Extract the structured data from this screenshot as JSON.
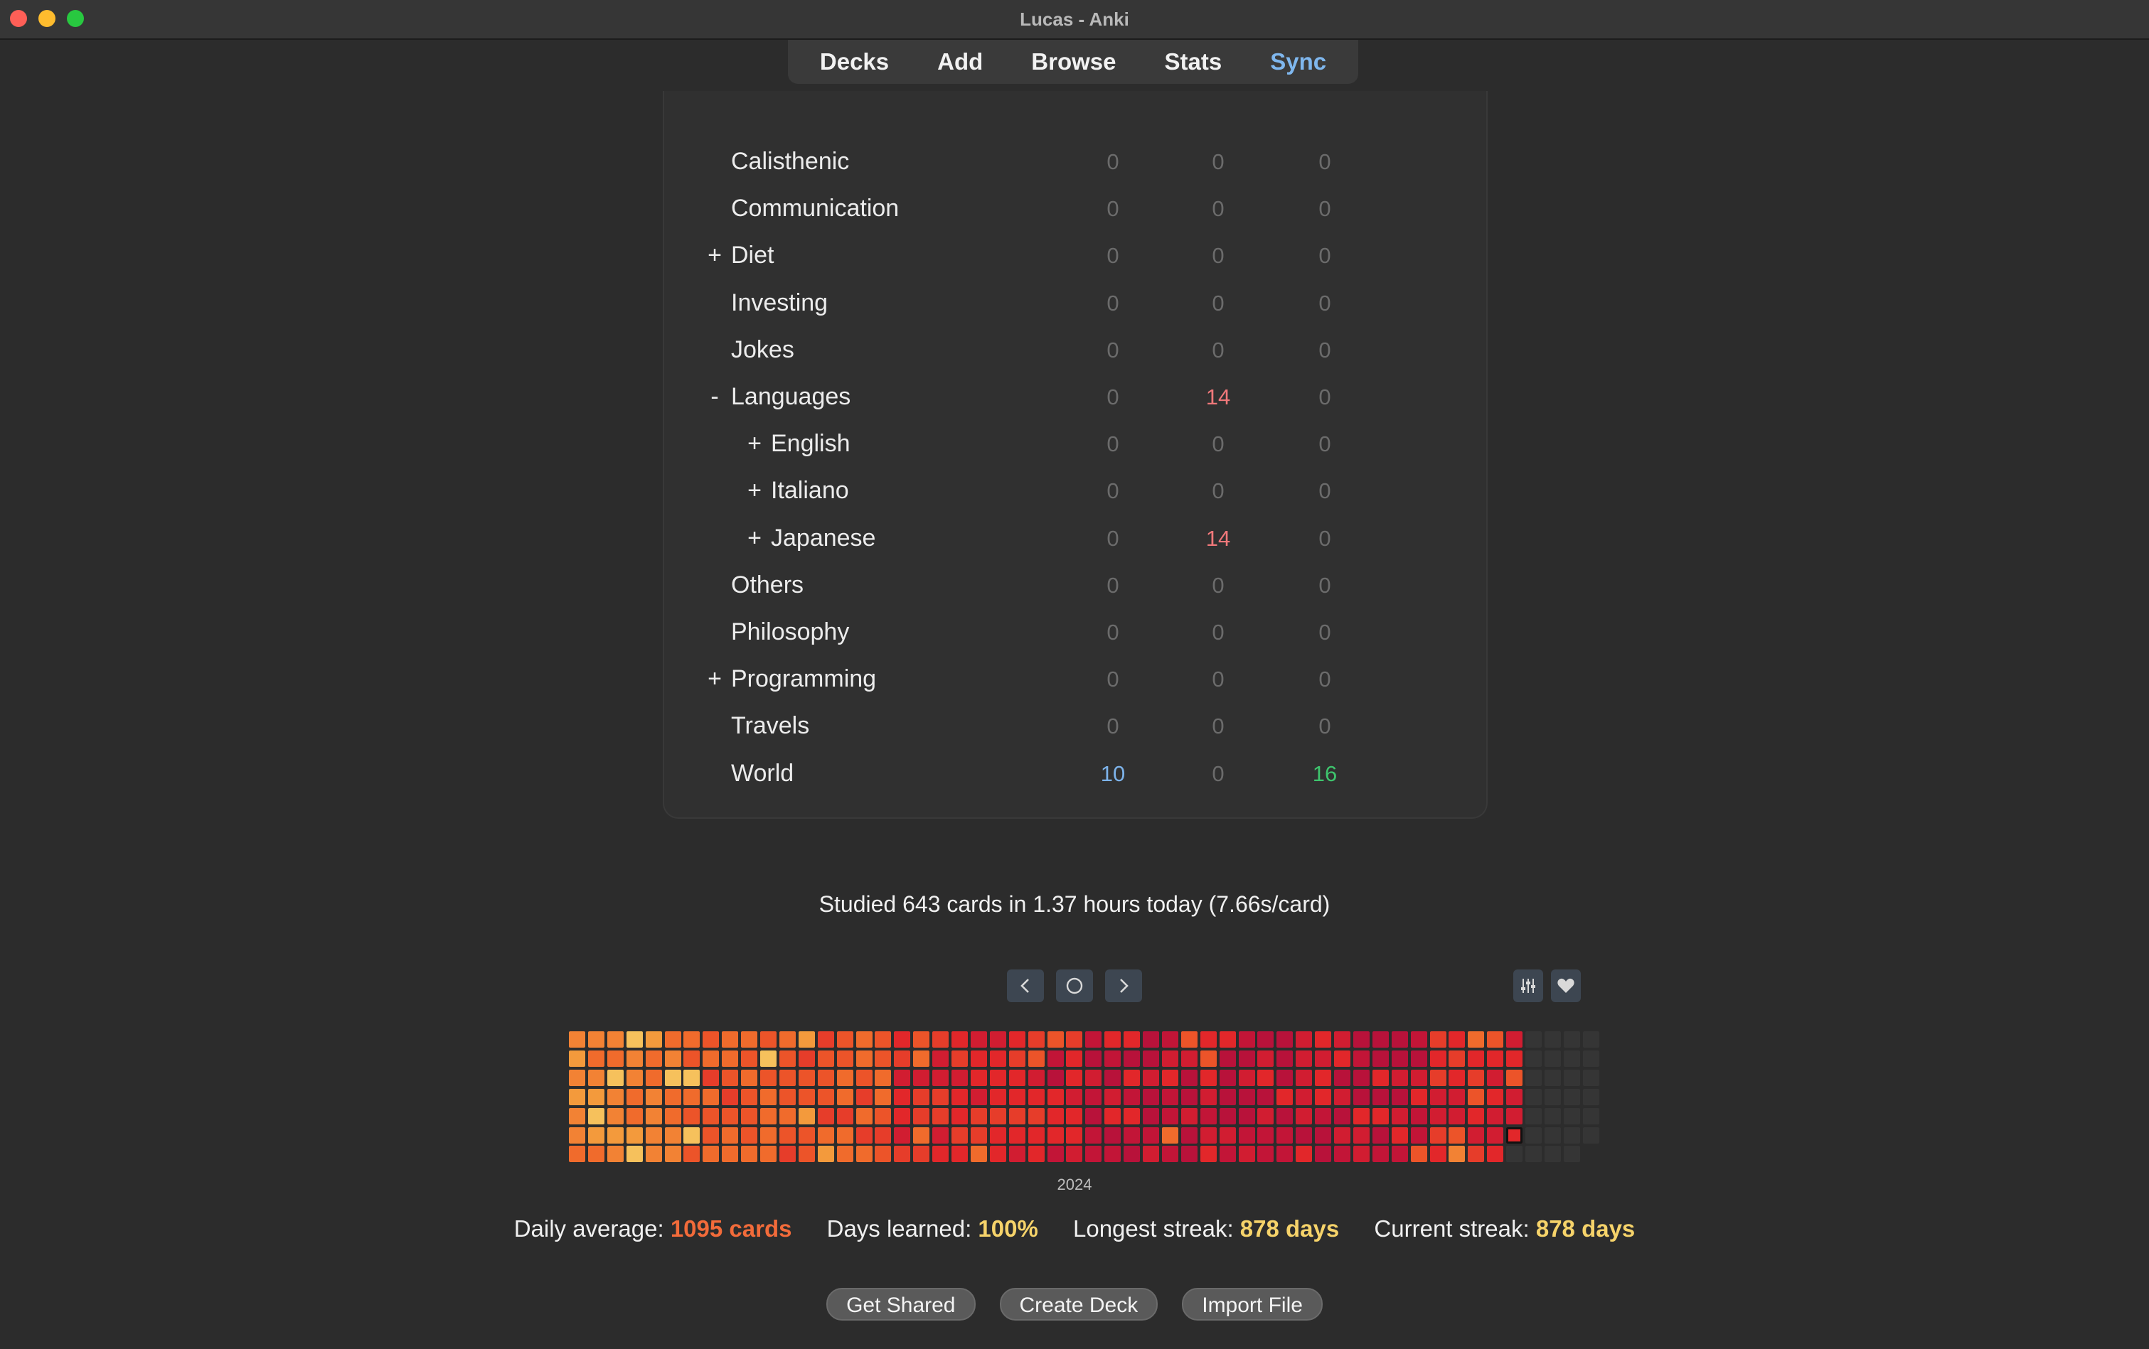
{
  "window": {
    "title": "Lucas - Anki"
  },
  "nav": {
    "decks": "Decks",
    "add": "Add",
    "browse": "Browse",
    "stats": "Stats",
    "sync": "Sync"
  },
  "decks": [
    {
      "toggle": "",
      "name": "Calisthenic",
      "new": "0",
      "learn": "0",
      "review": "0"
    },
    {
      "toggle": "",
      "name": "Communication",
      "new": "0",
      "learn": "0",
      "review": "0"
    },
    {
      "toggle": "+",
      "name": "Diet",
      "new": "0",
      "learn": "0",
      "review": "0"
    },
    {
      "toggle": "",
      "name": "Investing",
      "new": "0",
      "learn": "0",
      "review": "0"
    },
    {
      "toggle": "",
      "name": "Jokes",
      "new": "0",
      "learn": "0",
      "review": "0"
    },
    {
      "toggle": "-",
      "name": "Languages",
      "new": "0",
      "learn": "14",
      "review": "0"
    },
    {
      "toggle": "+",
      "name": "English",
      "new": "0",
      "learn": "0",
      "review": "0"
    },
    {
      "toggle": "+",
      "name": "Italiano",
      "new": "0",
      "learn": "0",
      "review": "0"
    },
    {
      "toggle": "+",
      "name": "Japanese",
      "new": "0",
      "learn": "14",
      "review": "0"
    },
    {
      "toggle": "",
      "name": "Others",
      "new": "0",
      "learn": "0",
      "review": "0"
    },
    {
      "toggle": "",
      "name": "Philosophy",
      "new": "0",
      "learn": "0",
      "review": "0"
    },
    {
      "toggle": "+",
      "name": "Programming",
      "new": "0",
      "learn": "0",
      "review": "0"
    },
    {
      "toggle": "",
      "name": "Travels",
      "new": "0",
      "learn": "0",
      "review": "0"
    },
    {
      "toggle": "",
      "name": "World",
      "new": "10",
      "learn": "0",
      "review": "16"
    }
  ],
  "studied": "Studied 643 cards in 1.37 hours today (7.66s/card)",
  "heatmap": {
    "year": "2024",
    "colors": {
      "low": "#f6c15c",
      "mid": "#f0732c",
      "high": "#e2272a",
      "max": "#b8123a",
      "empty": "#353535"
    }
  },
  "stats": {
    "daily_average_label": "Daily average:",
    "daily_average_value": "1095 cards",
    "days_learned_label": "Days learned:",
    "days_learned_value": "100%",
    "longest_streak_label": "Longest streak:",
    "longest_streak_value": "878 days",
    "current_streak_label": "Current streak:",
    "current_streak_value": "878 days"
  },
  "buttons": {
    "get_shared": "Get Shared",
    "create_deck": "Create Deck",
    "import_file": "Import File"
  },
  "icons": {
    "prev": "chevron-left-icon",
    "today": "circle-icon",
    "next": "chevron-right-icon",
    "options": "sliders-icon",
    "donate": "heart-icon"
  }
}
